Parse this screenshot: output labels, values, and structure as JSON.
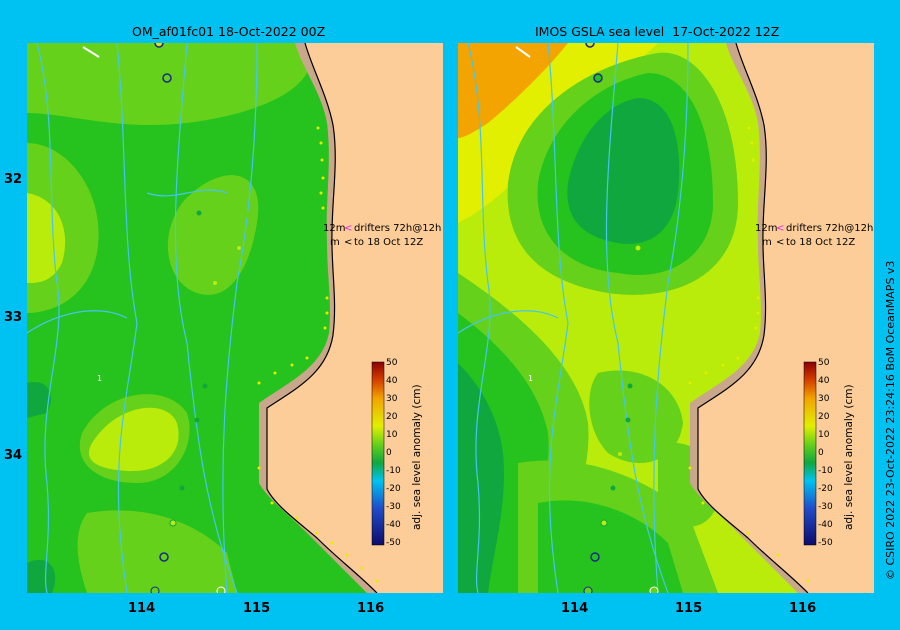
{
  "left_panel": {
    "title": "OM_af01fc01 18-Oct-2022 00Z",
    "drifter_note_1": "12m",
    "drifter_note_2": "drifters 72h@12h",
    "drifter_note_3": "m",
    "drifter_note_4": "to 18 Oct 12Z"
  },
  "right_panel": {
    "title": "IMOS GSLA sea level  17-Oct-2022 12Z",
    "drifter_note_1": "12m",
    "drifter_note_2": "drifters 72h@12h",
    "drifter_note_3": "m",
    "drifter_note_4": "to 18 Oct 12Z"
  },
  "axes": {
    "lat_ticks": [
      "32",
      "33",
      "34"
    ],
    "lon_ticks": [
      "114",
      "115",
      "116"
    ]
  },
  "colorbar": {
    "label": "adj. sea level anomaly (cm)",
    "ticks": [
      "50",
      "40",
      "30",
      "20",
      "10",
      "0",
      "-10",
      "-20",
      "-30",
      "-40",
      "-50"
    ]
  },
  "credit": "© CSIRO 2022   23-Oct-2022 23:24:16 BoM OceanMAPS v3",
  "colors": {
    "background": "#00c2f2",
    "land": "#fccd99",
    "shelf": "#c8a78a",
    "green_main": "#26c21e",
    "green_light": "#65d11a",
    "yellow_green": "#b9ec0a",
    "yellow": "#e2ef00",
    "orange": "#f3a400",
    "dark_green": "#10a83e",
    "current_lines": "#44c6ef"
  }
}
